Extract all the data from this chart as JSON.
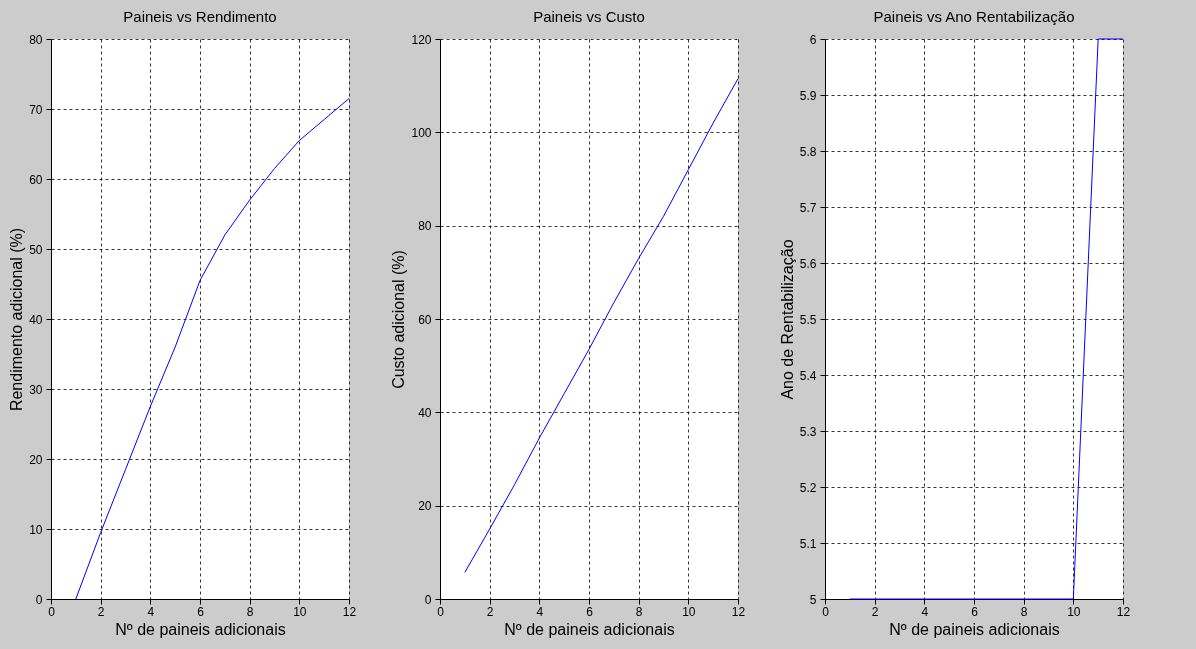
{
  "chart_data": [
    {
      "type": "line",
      "title": "Paineis vs Rendimento",
      "xlabel": "Nº de paineis adicionais",
      "ylabel": "Rendimento adicional (%)",
      "x": [
        1,
        2,
        3,
        4,
        5,
        6,
        7,
        8,
        9,
        10,
        11,
        12
      ],
      "series": [
        {
          "color": "#0000ff",
          "values": [
            0,
            9.5,
            18.5,
            27.5,
            36,
            45.5,
            52,
            57,
            61.5,
            65.5,
            68.5,
            71.5
          ]
        }
      ],
      "xlim": [
        0,
        12
      ],
      "xticks": [
        0,
        2,
        4,
        6,
        8,
        10,
        12
      ],
      "ylim": [
        0,
        80
      ],
      "yticks": [
        0,
        10,
        20,
        30,
        40,
        50,
        60,
        70,
        80
      ],
      "grid": true
    },
    {
      "type": "line",
      "title": "Paineis vs Custo",
      "xlabel": "Nº de paineis adicionais",
      "ylabel": "Custo adicional (%)",
      "x": [
        1,
        2,
        3,
        4,
        5,
        6,
        7,
        8,
        9,
        10,
        11,
        12
      ],
      "series": [
        {
          "color": "#0000ff",
          "values": [
            5.7,
            15,
            24.5,
            34.5,
            44,
            53.5,
            63.5,
            73,
            82,
            92,
            102,
            111.5
          ]
        }
      ],
      "xlim": [
        0,
        12
      ],
      "xticks": [
        0,
        2,
        4,
        6,
        8,
        10,
        12
      ],
      "ylim": [
        0,
        120
      ],
      "yticks": [
        0,
        20,
        40,
        60,
        80,
        100,
        120
      ],
      "grid": true
    },
    {
      "type": "line",
      "title": "Paineis vs Ano Rentabilização",
      "xlabel": "Nº de paineis adicionais",
      "ylabel": "Ano de Rentabilização",
      "x": [
        1,
        2,
        3,
        4,
        5,
        6,
        7,
        8,
        9,
        10,
        11,
        12
      ],
      "series": [
        {
          "color": "#0000ff",
          "values": [
            5,
            5,
            5,
            5,
            5,
            5,
            5,
            5,
            5,
            5,
            6,
            6
          ]
        }
      ],
      "xlim": [
        0,
        12
      ],
      "xticks": [
        0,
        2,
        4,
        6,
        8,
        10,
        12
      ],
      "ylim": [
        5,
        6
      ],
      "yticks": [
        5,
        5.1,
        5.2,
        5.3,
        5.4,
        5.5,
        5.6,
        5.7,
        5.8,
        5.9,
        6
      ],
      "grid": true
    }
  ]
}
